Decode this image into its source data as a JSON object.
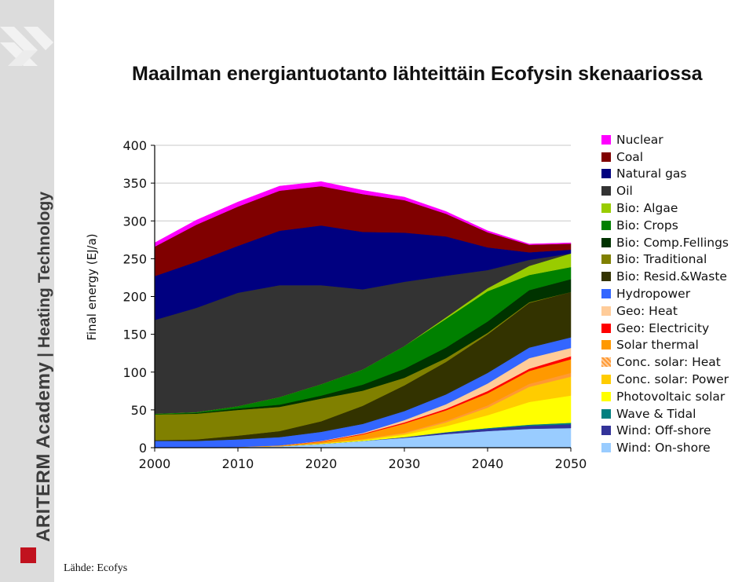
{
  "slide": {
    "title": "Maailman energiantuotanto lähteittäin Ecofysin skenaariossa",
    "source": "Lähde: Ecofys"
  },
  "sidebar": {
    "brand_main": "ARITERM Academy",
    "brand_separator": " | ",
    "brand_sub": "Heating Technology",
    "accent_color": "#c1121f"
  },
  "chart_data": {
    "type": "area",
    "stacked": true,
    "title": "",
    "xlabel": "",
    "ylabel": "Final energy (EJ/a)",
    "x": [
      2000,
      2005,
      2010,
      2015,
      2020,
      2025,
      2030,
      2035,
      2040,
      2045,
      2050
    ],
    "xticks": [
      2000,
      2010,
      2020,
      2030,
      2040,
      2050
    ],
    "ylim": [
      0,
      400
    ],
    "yticks": [
      0,
      50,
      100,
      150,
      200,
      250,
      300,
      350,
      400
    ],
    "grid": true,
    "legend_position": "right",
    "series": [
      {
        "name": "Wind: On-shore",
        "color": "#99ccff",
        "values": [
          0,
          0,
          1,
          2,
          5,
          9,
          13,
          18,
          22,
          25,
          26
        ]
      },
      {
        "name": "Wind: Off-shore",
        "color": "#333399",
        "values": [
          0,
          0,
          0,
          0,
          0,
          0,
          1,
          2,
          3,
          4,
          5
        ]
      },
      {
        "name": "Wave & Tidal",
        "color": "#008080",
        "values": [
          0,
          0,
          0,
          0,
          0,
          0,
          0,
          0.5,
          1,
          1.5,
          2
        ]
      },
      {
        "name": "Photovoltaic solar",
        "color": "#ffff00",
        "values": [
          0,
          0,
          0,
          0,
          0.5,
          1,
          3,
          8,
          17,
          30,
          36
        ]
      },
      {
        "name": "Conc. solar: Power",
        "color": "#ffcc00",
        "values": [
          0,
          0,
          0,
          0,
          0.5,
          1,
          2,
          5,
          10,
          20,
          25
        ]
      },
      {
        "name": "Conc. solar: Heat",
        "color": "#ff9933",
        "values": [
          0,
          0,
          0,
          0,
          0,
          0.5,
          1,
          2,
          3,
          4,
          5
        ]
      },
      {
        "name": "Solar thermal",
        "color": "#ff9900",
        "values": [
          0,
          0,
          0,
          1,
          2,
          6,
          12,
          14,
          16,
          17,
          18
        ]
      },
      {
        "name": "Geo: Electricity",
        "color": "#ff0000",
        "values": [
          0,
          0,
          0,
          0,
          0.5,
          1,
          1.5,
          2,
          3,
          3,
          4
        ]
      },
      {
        "name": "Geo: Heat",
        "color": "#ffcc99",
        "values": [
          0,
          0,
          0,
          0,
          0.5,
          1,
          3,
          6,
          10,
          14,
          11
        ]
      },
      {
        "name": "Hydropower",
        "color": "#3366ff",
        "values": [
          9,
          9,
          10,
          11,
          12,
          12,
          12,
          13,
          14,
          14,
          14
        ]
      },
      {
        "name": "Bio: Resid.&Waste",
        "color": "#333300",
        "values": [
          1,
          2,
          5,
          8,
          14,
          24,
          34,
          43,
          51,
          59,
          60
        ]
      },
      {
        "name": "Bio: Traditional",
        "color": "#808000",
        "values": [
          34,
          34,
          34,
          32,
          30,
          20,
          10,
          5,
          2,
          1,
          0
        ]
      },
      {
        "name": "Bio: Comp.Fellings",
        "color": "#003300",
        "values": [
          0,
          1,
          2,
          3,
          4,
          8,
          12,
          14,
          15,
          16,
          17
        ]
      },
      {
        "name": "Bio: Crops",
        "color": "#008000",
        "values": [
          1,
          1,
          3,
          10,
          15,
          20,
          30,
          38,
          40,
          20,
          16
        ]
      },
      {
        "name": "Bio: Algae",
        "color": "#99cc00",
        "values": [
          0,
          0,
          0,
          0,
          0,
          0,
          0,
          2,
          4,
          12,
          18
        ]
      },
      {
        "name": "Oil",
        "color": "#333333",
        "values": [
          124,
          138,
          150,
          148,
          131,
          106,
          85,
          55,
          24,
          8,
          0
        ]
      },
      {
        "name": "Natural gas",
        "color": "#000080",
        "values": [
          58,
          61,
          62,
          72,
          79,
          76,
          65,
          52,
          30,
          10,
          5
        ]
      },
      {
        "name": "Coal",
        "color": "#800000",
        "values": [
          39,
          49,
          52,
          53,
          52,
          50,
          43,
          30,
          20,
          10,
          8
        ]
      },
      {
        "name": "Nuclear",
        "color": "#ff00ff",
        "values": [
          5,
          6,
          6,
          6,
          6,
          5,
          4,
          3,
          2,
          1,
          1
        ]
      }
    ]
  }
}
